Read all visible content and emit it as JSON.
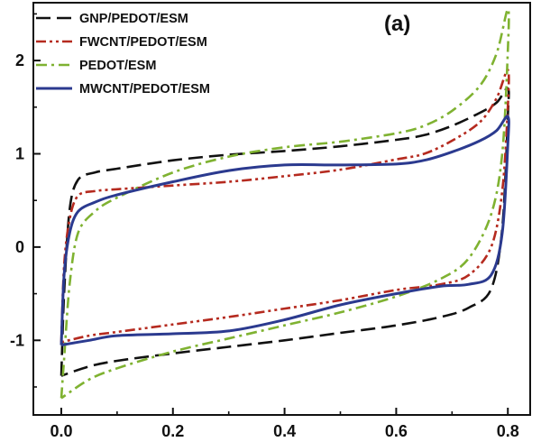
{
  "chart_data": {
    "type": "line",
    "panel_label": "(a)",
    "xlim": [
      -0.05,
      0.84
    ],
    "ylim": [
      -1.8,
      2.62
    ],
    "x_ticks": [
      0.0,
      0.2,
      0.4,
      0.6,
      0.8
    ],
    "x_tick_labels": [
      "0.0",
      "0.2",
      "0.4",
      "0.6",
      "0.8"
    ],
    "y_ticks": [
      -1,
      0,
      1,
      2
    ],
    "y_tick_labels": [
      "-1",
      "0",
      "1",
      "2"
    ],
    "legend_position": "top-left",
    "series": [
      {
        "name": "GNP/PEDOT/ESM",
        "color": "#111111",
        "dash": "dash",
        "points": [
          [
            0.0,
            -1.38
          ],
          [
            0.005,
            -0.5
          ],
          [
            0.015,
            0.4
          ],
          [
            0.03,
            0.72
          ],
          [
            0.06,
            0.8
          ],
          [
            0.1,
            0.84
          ],
          [
            0.2,
            0.93
          ],
          [
            0.3,
            0.99
          ],
          [
            0.4,
            1.03
          ],
          [
            0.5,
            1.08
          ],
          [
            0.6,
            1.15
          ],
          [
            0.65,
            1.2
          ],
          [
            0.7,
            1.3
          ],
          [
            0.75,
            1.44
          ],
          [
            0.78,
            1.55
          ],
          [
            0.8,
            1.7
          ],
          [
            0.8,
            1.4
          ],
          [
            0.79,
            0.2
          ],
          [
            0.77,
            -0.45
          ],
          [
            0.73,
            -0.65
          ],
          [
            0.68,
            -0.75
          ],
          [
            0.6,
            -0.84
          ],
          [
            0.5,
            -0.92
          ],
          [
            0.4,
            -1.0
          ],
          [
            0.3,
            -1.07
          ],
          [
            0.2,
            -1.14
          ],
          [
            0.1,
            -1.22
          ],
          [
            0.05,
            -1.28
          ],
          [
            0.0,
            -1.38
          ]
        ]
      },
      {
        "name": "FWCNT/PEDOT/ESM",
        "color": "#b52a1f",
        "dash": "dashdotdot",
        "points": [
          [
            0.0,
            -1.02
          ],
          [
            0.005,
            -0.2
          ],
          [
            0.015,
            0.3
          ],
          [
            0.03,
            0.55
          ],
          [
            0.06,
            0.6
          ],
          [
            0.1,
            0.62
          ],
          [
            0.2,
            0.66
          ],
          [
            0.3,
            0.7
          ],
          [
            0.4,
            0.76
          ],
          [
            0.5,
            0.83
          ],
          [
            0.6,
            0.94
          ],
          [
            0.65,
            1.0
          ],
          [
            0.7,
            1.14
          ],
          [
            0.75,
            1.34
          ],
          [
            0.78,
            1.6
          ],
          [
            0.8,
            1.9
          ],
          [
            0.8,
            1.5
          ],
          [
            0.79,
            0.6
          ],
          [
            0.77,
            0.0
          ],
          [
            0.73,
            -0.3
          ],
          [
            0.68,
            -0.4
          ],
          [
            0.6,
            -0.46
          ],
          [
            0.5,
            -0.57
          ],
          [
            0.4,
            -0.66
          ],
          [
            0.3,
            -0.75
          ],
          [
            0.2,
            -0.83
          ],
          [
            0.1,
            -0.91
          ],
          [
            0.05,
            -0.95
          ],
          [
            0.0,
            -1.02
          ]
        ]
      },
      {
        "name": "PEDOT/ESM",
        "color": "#7fb231",
        "dash": "dashdot",
        "points": [
          [
            0.0,
            -1.62
          ],
          [
            0.005,
            -1.2
          ],
          [
            0.015,
            -0.4
          ],
          [
            0.03,
            0.15
          ],
          [
            0.06,
            0.38
          ],
          [
            0.1,
            0.53
          ],
          [
            0.2,
            0.8
          ],
          [
            0.3,
            0.97
          ],
          [
            0.4,
            1.07
          ],
          [
            0.5,
            1.13
          ],
          [
            0.6,
            1.22
          ],
          [
            0.65,
            1.3
          ],
          [
            0.7,
            1.46
          ],
          [
            0.75,
            1.73
          ],
          [
            0.78,
            2.08
          ],
          [
            0.8,
            2.55
          ],
          [
            0.8,
            2.1
          ],
          [
            0.79,
            1.0
          ],
          [
            0.77,
            0.35
          ],
          [
            0.73,
            -0.12
          ],
          [
            0.68,
            -0.34
          ],
          [
            0.6,
            -0.53
          ],
          [
            0.5,
            -0.7
          ],
          [
            0.4,
            -0.84
          ],
          [
            0.3,
            -0.98
          ],
          [
            0.2,
            -1.12
          ],
          [
            0.1,
            -1.3
          ],
          [
            0.05,
            -1.42
          ],
          [
            0.0,
            -1.62
          ]
        ]
      },
      {
        "name": "MWCNT/PEDOT/ESM",
        "color": "#2b3a8f",
        "dash": "solid",
        "points": [
          [
            0.0,
            -1.05
          ],
          [
            0.005,
            -0.3
          ],
          [
            0.015,
            0.15
          ],
          [
            0.03,
            0.38
          ],
          [
            0.06,
            0.48
          ],
          [
            0.1,
            0.56
          ],
          [
            0.2,
            0.7
          ],
          [
            0.3,
            0.82
          ],
          [
            0.4,
            0.88
          ],
          [
            0.5,
            0.88
          ],
          [
            0.6,
            0.89
          ],
          [
            0.65,
            0.93
          ],
          [
            0.7,
            1.02
          ],
          [
            0.75,
            1.14
          ],
          [
            0.78,
            1.25
          ],
          [
            0.8,
            1.4
          ],
          [
            0.8,
            1.1
          ],
          [
            0.79,
            0.15
          ],
          [
            0.77,
            -0.3
          ],
          [
            0.73,
            -0.4
          ],
          [
            0.68,
            -0.42
          ],
          [
            0.6,
            -0.5
          ],
          [
            0.5,
            -0.62
          ],
          [
            0.4,
            -0.78
          ],
          [
            0.3,
            -0.9
          ],
          [
            0.2,
            -0.93
          ],
          [
            0.1,
            -0.95
          ],
          [
            0.05,
            -1.0
          ],
          [
            0.0,
            -1.05
          ]
        ]
      }
    ]
  }
}
